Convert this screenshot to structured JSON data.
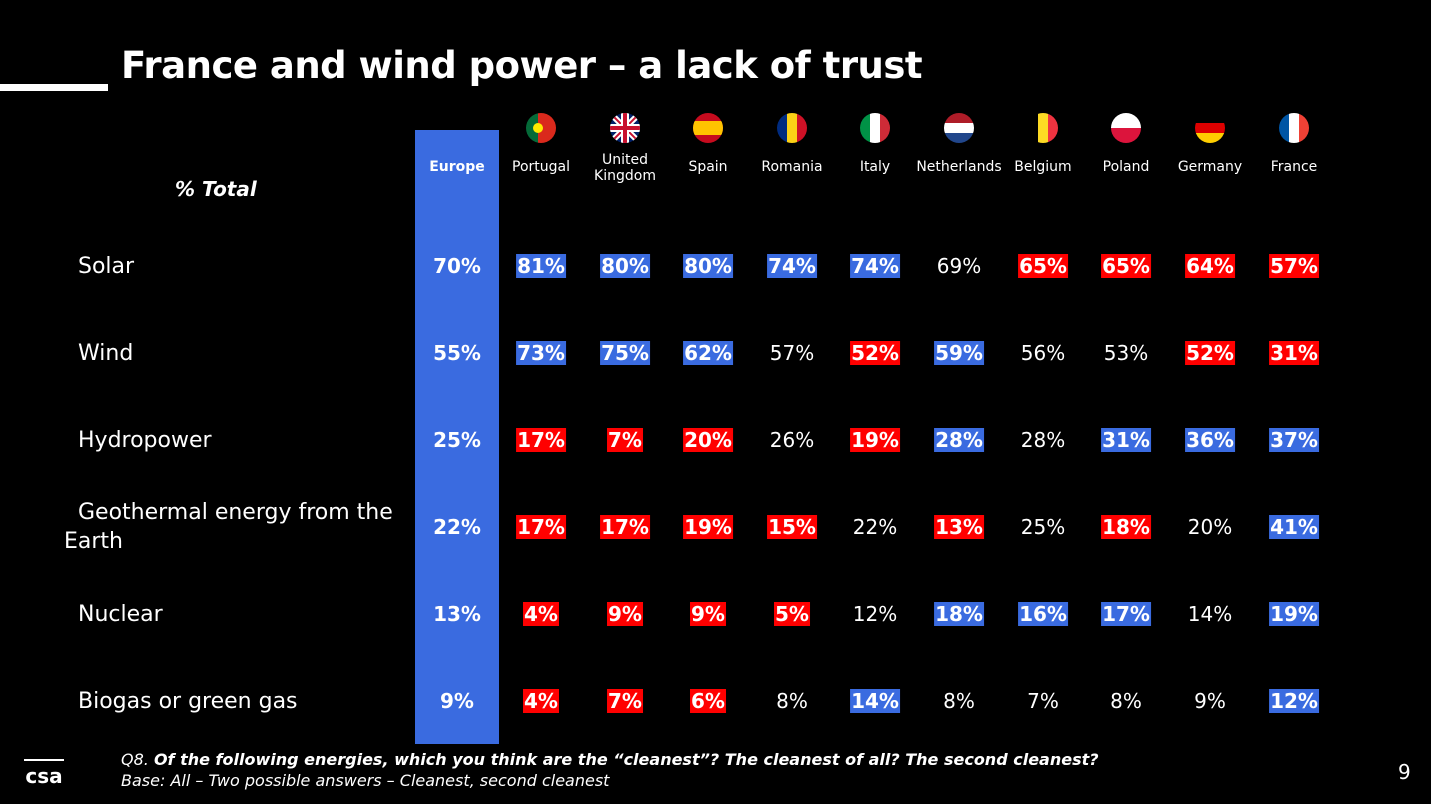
{
  "title": "France and wind power – a lack of trust",
  "row_header": "% Total",
  "footer": {
    "q_prefix": "Q8. ",
    "question": "Of the following energies, which you think are the “cleanest”? The cleanest of all? The second cleanest?",
    "base": "Base: All – Two possible answers – Cleanest, second cleanest"
  },
  "page_number": "9",
  "logo_text": "csa",
  "colors": {
    "blue": "#3a6be0",
    "red": "#ff0000",
    "background": "#000000"
  },
  "chart_data": {
    "type": "table",
    "title": "France and wind power – a lack of trust",
    "columns": [
      {
        "name": "Europe",
        "flag": ""
      },
      {
        "name": "Portugal",
        "flag": "portugal-flag-icon"
      },
      {
        "name": "United Kingdom",
        "flag": "uk-flag-icon"
      },
      {
        "name": "Spain",
        "flag": "spain-flag-icon"
      },
      {
        "name": "Romania",
        "flag": "romania-flag-icon"
      },
      {
        "name": "Italy",
        "flag": "italy-flag-icon"
      },
      {
        "name": "Netherlands",
        "flag": "netherlands-flag-icon"
      },
      {
        "name": "Belgium",
        "flag": "belgium-flag-icon"
      },
      {
        "name": "Poland",
        "flag": "poland-flag-icon"
      },
      {
        "name": "Germany",
        "flag": "germany-flag-icon"
      },
      {
        "name": "France",
        "flag": "france-flag-icon"
      }
    ],
    "rows": [
      {
        "label": "Solar",
        "values": [
          "70%",
          "81%",
          "80%",
          "80%",
          "74%",
          "74%",
          "69%",
          "65%",
          "65%",
          "64%",
          "57%"
        ],
        "highlight": [
          "e",
          "b",
          "b",
          "b",
          "b",
          "b",
          "n",
          "r",
          "r",
          "r",
          "r"
        ]
      },
      {
        "label": "Wind",
        "values": [
          "55%",
          "73%",
          "75%",
          "62%",
          "57%",
          "52%",
          "59%",
          "56%",
          "53%",
          "52%",
          "31%"
        ],
        "highlight": [
          "e",
          "b",
          "b",
          "b",
          "n",
          "r",
          "b",
          "n",
          "n",
          "r",
          "r"
        ]
      },
      {
        "label": "Hydropower",
        "values": [
          "25%",
          "17%",
          "7%",
          "20%",
          "26%",
          "19%",
          "28%",
          "28%",
          "31%",
          "36%",
          "37%"
        ],
        "highlight": [
          "e",
          "r",
          "r",
          "r",
          "n",
          "r",
          "b",
          "n",
          "b",
          "b",
          "b"
        ]
      },
      {
        "label": "Geothermal energy from the Earth",
        "values": [
          "22%",
          "17%",
          "17%",
          "19%",
          "15%",
          "22%",
          "13%",
          "25%",
          "18%",
          "20%",
          "41%"
        ],
        "highlight": [
          "e",
          "r",
          "r",
          "r",
          "r",
          "n",
          "r",
          "n",
          "r",
          "n",
          "b"
        ]
      },
      {
        "label": "Nuclear",
        "values": [
          "13%",
          "4%",
          "9%",
          "9%",
          "5%",
          "12%",
          "18%",
          "16%",
          "17%",
          "14%",
          "19%"
        ],
        "highlight": [
          "e",
          "r",
          "r",
          "r",
          "r",
          "n",
          "b",
          "b",
          "b",
          "n",
          "b"
        ]
      },
      {
        "label": "Biogas or green gas",
        "values": [
          "9%",
          "4%",
          "7%",
          "6%",
          "8%",
          "14%",
          "8%",
          "7%",
          "8%",
          "9%",
          "12%"
        ],
        "highlight": [
          "e",
          "r",
          "r",
          "r",
          "n",
          "b",
          "n",
          "n",
          "n",
          "n",
          "b"
        ]
      }
    ]
  }
}
